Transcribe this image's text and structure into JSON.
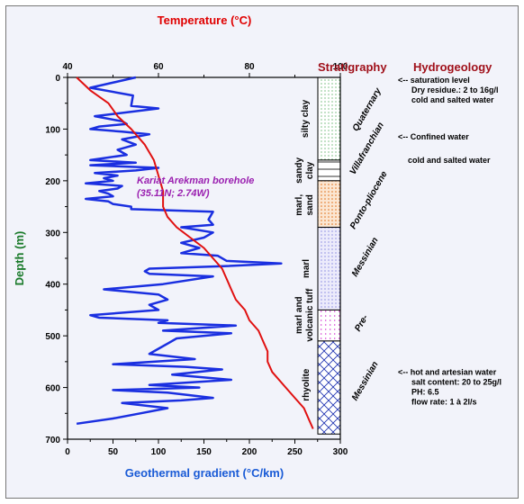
{
  "chart_data": {
    "type": "line",
    "title_top": "Temperature (°C)",
    "xlabel": "Geothermal gradient (°C/km)",
    "ylabel": "Depth (m)",
    "xlim_bottom": [
      0,
      300
    ],
    "xlim_top": [
      40,
      100
    ],
    "ylim": [
      0,
      700
    ],
    "x_ticks_bottom": [
      "0",
      "50",
      "100",
      "150",
      "200",
      "250",
      "300"
    ],
    "x_ticks_top": [
      "40",
      "60",
      "80",
      "100"
    ],
    "y_ticks": [
      "0",
      "100",
      "200",
      "300",
      "400",
      "500",
      "600",
      "700"
    ],
    "annotation": [
      "Kariat Arekman borehole",
      "(35.11N; 2.74W)"
    ],
    "series": [
      {
        "axis": "bottom",
        "color": "#1a2fe0",
        "depth": [
          0,
          20,
          35,
          55,
          60,
          75,
          85,
          90,
          95,
          100,
          105,
          110,
          120,
          130,
          140,
          150,
          160,
          165,
          170,
          175,
          180,
          185,
          190,
          195,
          200,
          205,
          210,
          215,
          220,
          225,
          230,
          235,
          240,
          245,
          250,
          255,
          260,
          275,
          285,
          290,
          300,
          310,
          320,
          330,
          340,
          345,
          355,
          360,
          365,
          370,
          375,
          380,
          385,
          400,
          410,
          420,
          430,
          440,
          450,
          460,
          465,
          470,
          475,
          480,
          490,
          495,
          505,
          515,
          525,
          535,
          545,
          555,
          560,
          565,
          575,
          585,
          595,
          600,
          605,
          610,
          620,
          625,
          630,
          640,
          650,
          660,
          670
        ],
        "gradient": [
          75,
          25,
          72,
          70,
          100,
          30,
          60,
          65,
          35,
          25,
          60,
          90,
          60,
          75,
          55,
          65,
          25,
          75,
          25,
          100,
          75,
          30,
          55,
          40,
          50,
          20,
          60,
          55,
          35,
          45,
          50,
          20,
          45,
          50,
          70,
          70,
          160,
          155,
          160,
          125,
          160,
          150,
          125,
          145,
          125,
          165,
          175,
          235,
          175,
          90,
          85,
          90,
          160,
          105,
          40,
          100,
          110,
          90,
          100,
          25,
          35,
          110,
          100,
          185,
          105,
          180,
          120,
          110,
          100,
          90,
          140,
          50,
          130,
          170,
          115,
          180,
          90,
          145,
          50,
          110,
          160,
          125,
          60,
          110,
          80,
          50,
          10
        ]
      },
      {
        "axis": "top",
        "color": "#e01010",
        "depth": [
          0,
          25,
          50,
          75,
          100,
          130,
          160,
          190,
          220,
          250,
          270,
          290,
          310,
          330,
          350,
          370,
          390,
          410,
          430,
          450,
          470,
          490,
          510,
          530,
          550,
          570,
          600,
          620,
          640,
          660,
          680
        ],
        "temperature": [
          42,
          45,
          49,
          51,
          54,
          57,
          59,
          60,
          61,
          61,
          62,
          64,
          67,
          70,
          72,
          74,
          75,
          76,
          77,
          79,
          80,
          82,
          83,
          84,
          84,
          85,
          88,
          90,
          92,
          93,
          94
        ]
      }
    ],
    "stratigraphy": {
      "header": "Stratigraphy",
      "layers": [
        {
          "top": 0,
          "bottom": 160,
          "pattern": "dots-green",
          "age": "Quaternary",
          "lithology": "silty clay"
        },
        {
          "top": 160,
          "bottom": 200,
          "pattern": "lines",
          "age": "Villafranchian",
          "lithology": "sandy clay"
        },
        {
          "top": 200,
          "bottom": 290,
          "pattern": "dots-orange",
          "age": "Ponto-pliocene",
          "lithology": "marl, sand"
        },
        {
          "top": 290,
          "bottom": 450,
          "pattern": "dots-blue",
          "age": "Messinian",
          "lithology": "marl"
        },
        {
          "top": 450,
          "bottom": 510,
          "pattern": "dots-magenta",
          "age": "Pre-",
          "lithology": "marl and volcanic tuff"
        },
        {
          "top": 510,
          "bottom": 690,
          "pattern": "cross-blue",
          "age": "Messinian",
          "lithology": "rhyolite"
        }
      ]
    },
    "hydrogeology": {
      "header": "Hydrogeology",
      "notes": [
        {
          "depth": 5,
          "lines": [
            "<-- saturation level",
            "Dry residue.: 2 to 16g/l",
            "cold and salted water"
          ]
        },
        {
          "depth": 115,
          "lines": [
            "<-- Confined water"
          ]
        },
        {
          "depth": 160,
          "lines": [
            "cold and salted water"
          ]
        },
        {
          "depth": 570,
          "lines": [
            "<-- hot and artesian water",
            "salt content: 20 to 25g/l",
            "PH: 6.5",
            "flow rate: 1 à 2l/s"
          ]
        }
      ]
    }
  }
}
